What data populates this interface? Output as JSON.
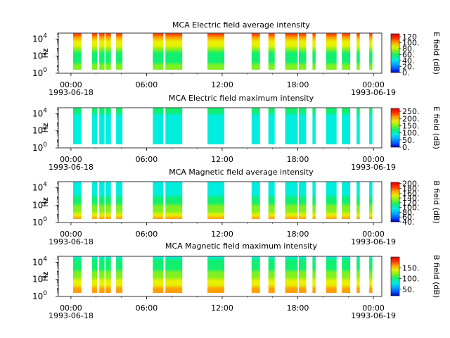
{
  "chart_data": [
    {
      "type": "heatmap",
      "title": "MCA  Electric field average intensity",
      "ylabel": "Hz",
      "yscale": "log",
      "ylim": [
        1,
        50000
      ],
      "yticks": [
        {
          "v": 1,
          "base": "10",
          "exp": "0"
        },
        {
          "v": 100,
          "base": "10",
          "exp": "2"
        },
        {
          "v": 10000,
          "base": "10",
          "exp": "4"
        }
      ],
      "xlim": [
        "1993-06-17 23:00",
        "1993-06-19 00:40"
      ],
      "xticks": [
        {
          "t": "00:00",
          "d": "1993-06-18"
        },
        {
          "t": "06:00",
          "d": ""
        },
        {
          "t": "12:00",
          "d": ""
        },
        {
          "t": "18:00",
          "d": ""
        },
        {
          "t": "00:00",
          "d": "1993-06-19"
        }
      ],
      "colorbar_label": "E field (dB)",
      "colorbar_range": [
        0,
        130
      ],
      "colorbar_ticks": [
        "0.",
        "20.",
        "40.",
        "60.",
        "80.",
        "100.",
        "120"
      ],
      "colorbar_tick_values": [
        0,
        20,
        40,
        60,
        80,
        100,
        120
      ],
      "colorscale": [
        "#0000cc",
        "#0060ff",
        "#00b0ff",
        "#00eedd",
        "#10f070",
        "#80f020",
        "#e8f000",
        "#ffa000",
        "#ff3000",
        "#dd0000"
      ],
      "level_profile": [
        0.55,
        0.5,
        0.47,
        0.44,
        0.46,
        0.52,
        0.62,
        0.72,
        0.8,
        0.86
      ]
    },
    {
      "type": "heatmap",
      "title": "MCA  Electric field maximum intensity",
      "ylabel": "Hz",
      "yscale": "log",
      "ylim": [
        1,
        50000
      ],
      "yticks": [
        {
          "v": 1,
          "base": "10",
          "exp": "0"
        },
        {
          "v": 100,
          "base": "10",
          "exp": "2"
        },
        {
          "v": 10000,
          "base": "10",
          "exp": "4"
        }
      ],
      "xlim": [
        "1993-06-17 23:00",
        "1993-06-19 00:40"
      ],
      "xticks": [
        {
          "t": "00:00",
          "d": "1993-06-18"
        },
        {
          "t": "06:00",
          "d": ""
        },
        {
          "t": "12:00",
          "d": ""
        },
        {
          "t": "18:00",
          "d": ""
        },
        {
          "t": "00:00",
          "d": "1993-06-19"
        }
      ],
      "colorbar_label": "E field (dB)",
      "colorbar_range": [
        0,
        270
      ],
      "colorbar_ticks": [
        "0.",
        "50.",
        "100.",
        "150.",
        "200.",
        "250."
      ],
      "colorbar_tick_values": [
        0,
        50,
        100,
        150,
        200,
        250
      ],
      "colorscale": [
        "#0000cc",
        "#0060ff",
        "#00b0ff",
        "#00eedd",
        "#10f070",
        "#80f020",
        "#e8f000",
        "#ffa000",
        "#ff3000",
        "#dd0000"
      ],
      "level_profile": [
        0.3,
        0.3,
        0.31,
        0.31,
        0.33,
        0.34,
        0.36,
        0.38,
        0.4,
        0.42
      ]
    },
    {
      "type": "heatmap",
      "title": "MCA  Magnetic field average intensity",
      "ylabel": "Hz",
      "yscale": "log",
      "ylim": [
        1,
        50000
      ],
      "yticks": [
        {
          "v": 1,
          "base": "10",
          "exp": "0"
        },
        {
          "v": 100,
          "base": "10",
          "exp": "2"
        },
        {
          "v": 10000,
          "base": "10",
          "exp": "4"
        }
      ],
      "xlim": [
        "1993-06-17 23:00",
        "1993-06-19 00:40"
      ],
      "xticks": [
        {
          "t": "00:00",
          "d": "1993-06-18"
        },
        {
          "t": "06:00",
          "d": ""
        },
        {
          "t": "12:00",
          "d": ""
        },
        {
          "t": "18:00",
          "d": ""
        },
        {
          "t": "00:00",
          "d": "1993-06-19"
        }
      ],
      "colorbar_label": "B field (dB)",
      "colorbar_range": [
        40,
        205
      ],
      "colorbar_ticks": [
        "40.",
        "60.",
        "80.",
        "100.",
        "120.",
        "140.",
        "160.",
        "180.",
        "200."
      ],
      "colorbar_tick_values": [
        40,
        60,
        80,
        100,
        120,
        140,
        160,
        180,
        200
      ],
      "colorscale": [
        "#0000cc",
        "#0060ff",
        "#00b0ff",
        "#00eedd",
        "#10f070",
        "#80f020",
        "#e8f000",
        "#ffa000",
        "#ff3000",
        "#dd0000"
      ],
      "level_profile": [
        0.74,
        0.66,
        0.58,
        0.52,
        0.46,
        0.41,
        0.37,
        0.34,
        0.32,
        0.3
      ]
    },
    {
      "type": "heatmap",
      "title": "MCA  Magnetic field maximum intensity",
      "ylabel": "Hz",
      "yscale": "log",
      "ylim": [
        1,
        50000
      ],
      "yticks": [
        {
          "v": 1,
          "base": "10",
          "exp": "0"
        },
        {
          "v": 100,
          "base": "10",
          "exp": "2"
        },
        {
          "v": 10000,
          "base": "10",
          "exp": "4"
        }
      ],
      "xlim": [
        "1993-06-17 23:00",
        "1993-06-19 00:40"
      ],
      "xticks": [
        {
          "t": "00:00",
          "d": "1993-06-18"
        },
        {
          "t": "06:00",
          "d": ""
        },
        {
          "t": "12:00",
          "d": ""
        },
        {
          "t": "18:00",
          "d": ""
        },
        {
          "t": "00:00",
          "d": "1993-06-19"
        }
      ],
      "colorbar_label": "B field (dB)",
      "colorbar_range": [
        20,
        200
      ],
      "colorbar_ticks": [
        "50.",
        "100.",
        "150."
      ],
      "colorbar_tick_values": [
        50,
        100,
        150
      ],
      "colorscale": [
        "#0000cc",
        "#0060ff",
        "#00b0ff",
        "#00eedd",
        "#10f070",
        "#80f020",
        "#e8f000",
        "#ffa000",
        "#ff3000",
        "#dd0000"
      ],
      "level_profile": [
        0.8,
        0.74,
        0.68,
        0.62,
        0.56,
        0.5,
        0.46,
        0.43,
        0.4,
        0.38
      ]
    }
  ],
  "data_intervals": [
    [
      "00:10",
      "00:50"
    ],
    [
      "01:40",
      "02:05"
    ],
    [
      "02:15",
      "02:40"
    ],
    [
      "02:45",
      "03:10"
    ],
    [
      "03:35",
      "04:05"
    ],
    [
      "06:30",
      "07:20"
    ],
    [
      "07:30",
      "08:50"
    ],
    [
      "10:50",
      "12:10"
    ],
    [
      "14:20",
      "15:00"
    ],
    [
      "15:40",
      "16:10"
    ],
    [
      "17:00",
      "18:00"
    ],
    [
      "18:05",
      "18:40"
    ],
    [
      "19:10",
      "19:25"
    ],
    [
      "20:15",
      "21:05"
    ],
    [
      "21:30",
      "22:10"
    ],
    [
      "22:40",
      "22:55"
    ],
    [
      "23:40",
      "23:55"
    ]
  ]
}
